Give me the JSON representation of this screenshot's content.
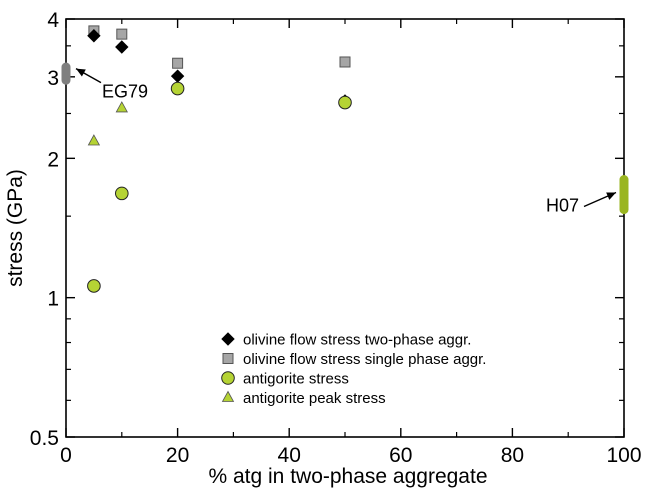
{
  "chart_data": {
    "type": "scatter",
    "xlabel": "% atg in two-phase aggregate",
    "ylabel": "stress (GPa)",
    "xlim": [
      0,
      100
    ],
    "ylim": [
      0.5,
      4
    ],
    "y_scale": "log",
    "x_ticks": [
      "0",
      "20",
      "40",
      "60",
      "80",
      "100"
    ],
    "x_tick_values": [
      0,
      20,
      40,
      60,
      80,
      100
    ],
    "y_ticks": [
      "0.5",
      "1",
      "2",
      "3",
      "4"
    ],
    "y_tick_values": [
      0.5,
      1,
      2,
      3,
      4
    ],
    "legend_position": "bottom-center",
    "series": [
      {
        "name": "olivine flow stress two-phase aggr.",
        "marker": "diamond",
        "color": "#000000",
        "x": [
          5,
          10,
          20,
          50
        ],
        "y": [
          3.68,
          3.48,
          3.01,
          2.66
        ]
      },
      {
        "name": "olivine flow stress single phase aggr.",
        "marker": "square",
        "color": "#a6a6a6",
        "x": [
          5,
          10,
          20,
          50
        ],
        "y": [
          3.77,
          3.71,
          3.21,
          3.23
        ]
      },
      {
        "name": "antigorite stress",
        "marker": "circle",
        "color": "#b5d334",
        "x": [
          5,
          10,
          20,
          50
        ],
        "y": [
          1.06,
          1.68,
          2.83,
          2.64
        ]
      },
      {
        "name": "antigorite peak stress",
        "marker": "triangle",
        "color": "#b5d334",
        "x": [
          5,
          10
        ],
        "y": [
          2.18,
          2.57
        ]
      }
    ],
    "annotations": [
      {
        "text": "EG79",
        "x": 0,
        "y_range": [
          2.95,
          3.15
        ],
        "color": "#7f7f7f"
      },
      {
        "text": "H07",
        "x": 100,
        "y_range": [
          1.55,
          1.8
        ],
        "color": "#9ab520"
      }
    ]
  }
}
